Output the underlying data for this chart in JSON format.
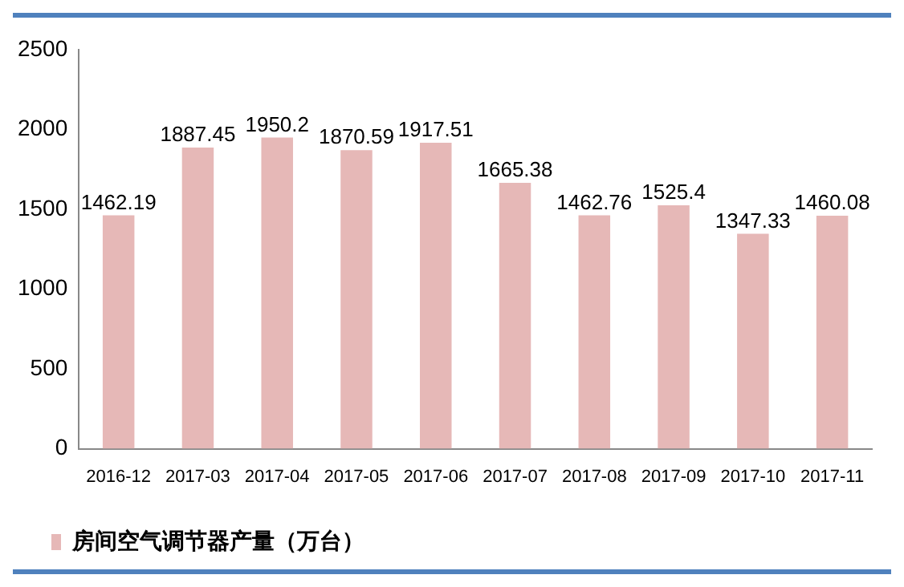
{
  "chart_data": {
    "type": "bar",
    "categories": [
      "2016-12",
      "2017-03",
      "2017-04",
      "2017-05",
      "2017-06",
      "2017-07",
      "2017-08",
      "2017-09",
      "2017-10",
      "2017-11"
    ],
    "series": [
      {
        "name": "房间空气调节器产量（万台）",
        "color": "#e6b8b7",
        "values": [
          1462.19,
          1887.45,
          1950.2,
          1870.59,
          1917.51,
          1665.38,
          1462.76,
          1525.4,
          1347.33,
          1460.08
        ]
      }
    ],
    "ylim": [
      0,
      2500
    ],
    "yticks": [
      0,
      500,
      1000,
      1500,
      2000,
      2500
    ],
    "grid": false,
    "legend": "bottom left",
    "data_labels": true
  }
}
